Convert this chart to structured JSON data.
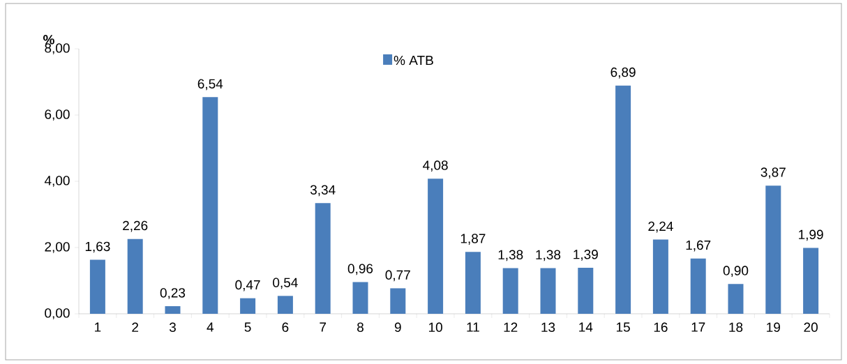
{
  "chart_data": {
    "type": "bar",
    "ylabel": "%",
    "categories": [
      "1",
      "2",
      "3",
      "4",
      "5",
      "6",
      "7",
      "8",
      "9",
      "10",
      "11",
      "12",
      "13",
      "14",
      "15",
      "16",
      "17",
      "18",
      "19",
      "20"
    ],
    "series": [
      {
        "name": "% ATB",
        "color": "#4a7ebb",
        "values": [
          1.63,
          2.26,
          0.23,
          6.54,
          0.47,
          0.54,
          3.34,
          0.96,
          0.77,
          4.08,
          1.87,
          1.38,
          1.38,
          1.39,
          6.89,
          2.24,
          1.67,
          0.9,
          3.87,
          1.99
        ],
        "value_labels": [
          "1,63",
          "2,26",
          "0,23",
          "6,54",
          "0,47",
          "0,54",
          "3,34",
          "0,96",
          "0,77",
          "4,08",
          "1,87",
          "1,38",
          "1,38",
          "1,39",
          "6,89",
          "2,24",
          "1,67",
          "0,90",
          "3,87",
          "1,99"
        ]
      }
    ],
    "ylim": [
      0,
      8
    ],
    "yticks": [
      {
        "value": 0,
        "label": "0,00"
      },
      {
        "value": 2,
        "label": "2,00"
      },
      {
        "value": 4,
        "label": "4,00"
      },
      {
        "value": 6,
        "label": "6,00"
      },
      {
        "value": 8,
        "label": "8,00"
      }
    ],
    "legend": "top",
    "grid": false
  }
}
